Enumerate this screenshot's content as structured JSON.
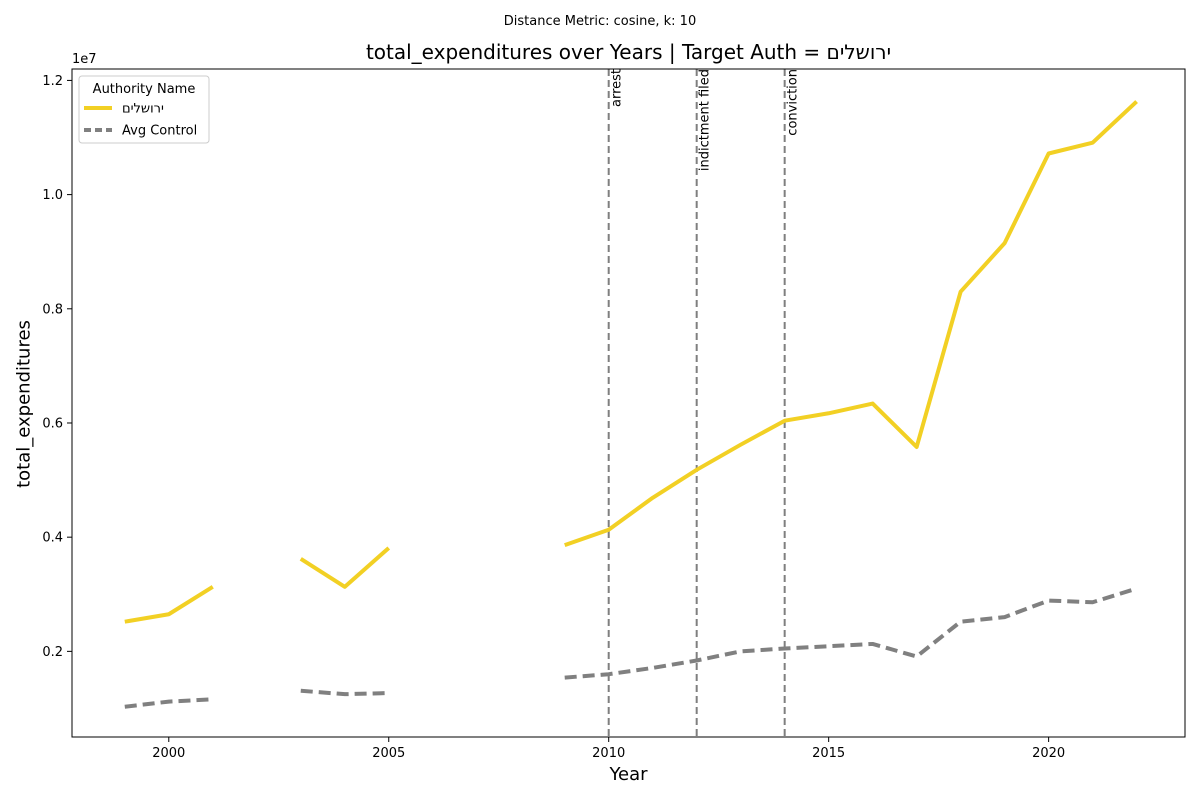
{
  "header": {
    "suptitle": "Distance Metric: cosine, k: 10"
  },
  "chart_data": {
    "type": "line",
    "title": "total_expenditures over Years | Target Auth = ירושלים",
    "xlabel": "Year",
    "ylabel": "total_expenditures",
    "y_offset_label": "1e7",
    "xlim": [
      1997.8,
      2023.1
    ],
    "ylim": [
      500000,
      12200000
    ],
    "x_ticks": [
      2000,
      2005,
      2010,
      2015,
      2020
    ],
    "x_tick_labels": [
      "2000",
      "2005",
      "2010",
      "2015",
      "2020"
    ],
    "y_ticks": [
      2000000,
      4000000,
      6000000,
      8000000,
      10000000,
      12000000
    ],
    "y_tick_labels": [
      "0.2",
      "0.4",
      "0.6",
      "0.8",
      "1.0",
      "1.2"
    ],
    "grid": false,
    "legend": {
      "title": "Authority Name",
      "placement": "upper-left"
    },
    "series": [
      {
        "name": "ירושלים",
        "color": "#f2d024",
        "style": "solid",
        "points": [
          [
            1999,
            2520000
          ],
          [
            2000,
            2650000
          ],
          [
            2001,
            3130000
          ],
          [
            2002,
            null
          ],
          [
            2003,
            3620000
          ],
          [
            2004,
            3130000
          ],
          [
            2005,
            3810000
          ],
          [
            2006,
            null
          ],
          [
            2007,
            null
          ],
          [
            2008,
            null
          ],
          [
            2009,
            3860000
          ],
          [
            2010,
            4130000
          ],
          [
            2011,
            4690000
          ],
          [
            2012,
            5180000
          ],
          [
            2013,
            5620000
          ],
          [
            2014,
            6040000
          ],
          [
            2015,
            6170000
          ],
          [
            2016,
            6340000
          ],
          [
            2017,
            5580000
          ],
          [
            2018,
            8300000
          ],
          [
            2019,
            9150000
          ],
          [
            2020,
            10720000
          ],
          [
            2021,
            10910000
          ],
          [
            2022,
            11630000
          ]
        ]
      },
      {
        "name": "Avg Control",
        "color": "#808080",
        "style": "dashed",
        "points": [
          [
            1999,
            1030000
          ],
          [
            2000,
            1120000
          ],
          [
            2001,
            1160000
          ],
          [
            2002,
            null
          ],
          [
            2003,
            1310000
          ],
          [
            2004,
            1250000
          ],
          [
            2005,
            1270000
          ],
          [
            2006,
            null
          ],
          [
            2007,
            null
          ],
          [
            2008,
            null
          ],
          [
            2009,
            1540000
          ],
          [
            2010,
            1600000
          ],
          [
            2011,
            1710000
          ],
          [
            2012,
            1840000
          ],
          [
            2013,
            2000000
          ],
          [
            2014,
            2050000
          ],
          [
            2015,
            2090000
          ],
          [
            2016,
            2130000
          ],
          [
            2017,
            1910000
          ],
          [
            2018,
            2520000
          ],
          [
            2019,
            2600000
          ],
          [
            2020,
            2890000
          ],
          [
            2021,
            2860000
          ],
          [
            2022,
            3100000
          ]
        ]
      }
    ],
    "events": [
      {
        "x": 2010,
        "label": "arrest"
      },
      {
        "x": 2012,
        "label": "indictment filed"
      },
      {
        "x": 2014,
        "label": "conviction"
      }
    ]
  }
}
